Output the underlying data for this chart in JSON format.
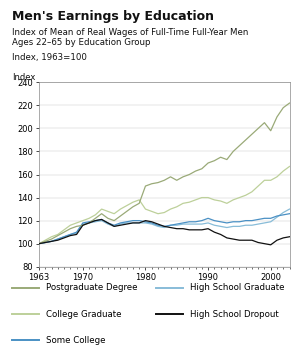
{
  "title": "Men's Earnings by Education",
  "subtitle1": "Index of Mean of Real Wages of Full-Time Full-Year Men",
  "subtitle2": "Ages 22–65 by Education Group",
  "ylabel_top": "Index, 1963=100",
  "ylabel_axis": "Index",
  "xlim": [
    1963,
    2003
  ],
  "ylim": [
    80,
    240
  ],
  "yticks": [
    80,
    100,
    120,
    140,
    160,
    180,
    200,
    220,
    240
  ],
  "xticks": [
    1963,
    1970,
    1980,
    1990,
    2000
  ],
  "years": [
    1963,
    1964,
    1965,
    1966,
    1967,
    1968,
    1969,
    1970,
    1971,
    1972,
    1973,
    1974,
    1975,
    1976,
    1977,
    1978,
    1979,
    1980,
    1981,
    1982,
    1983,
    1984,
    1985,
    1986,
    1987,
    1988,
    1989,
    1990,
    1991,
    1992,
    1993,
    1994,
    1995,
    1996,
    1997,
    1998,
    1999,
    2000,
    2001,
    2002,
    2003
  ],
  "postgrad": [
    100,
    102,
    104,
    107,
    110,
    113,
    115,
    116,
    118,
    122,
    126,
    122,
    120,
    124,
    128,
    132,
    135,
    150,
    152,
    153,
    155,
    158,
    155,
    158,
    160,
    163,
    165,
    170,
    172,
    175,
    173,
    180,
    185,
    190,
    195,
    200,
    205,
    198,
    210,
    218,
    222
  ],
  "college": [
    100,
    103,
    106,
    108,
    112,
    116,
    118,
    120,
    122,
    125,
    130,
    128,
    126,
    130,
    133,
    136,
    138,
    130,
    128,
    126,
    127,
    130,
    132,
    135,
    136,
    138,
    140,
    140,
    138,
    137,
    135,
    138,
    140,
    142,
    145,
    150,
    155,
    155,
    158,
    163,
    167
  ],
  "some_college": [
    100,
    101,
    102,
    104,
    106,
    108,
    110,
    118,
    119,
    120,
    121,
    118,
    116,
    118,
    119,
    120,
    120,
    119,
    118,
    116,
    115,
    116,
    117,
    118,
    119,
    119,
    120,
    122,
    120,
    119,
    118,
    119,
    119,
    120,
    120,
    121,
    122,
    122,
    124,
    125,
    126
  ],
  "hs_graduate": [
    100,
    101,
    102,
    104,
    106,
    108,
    109,
    117,
    118,
    119,
    120,
    117,
    115,
    117,
    118,
    118,
    118,
    118,
    117,
    115,
    114,
    116,
    116,
    117,
    117,
    117,
    117,
    118,
    116,
    115,
    114,
    115,
    115,
    116,
    116,
    117,
    118,
    119,
    123,
    127,
    130
  ],
  "hs_dropout": [
    100,
    101,
    102,
    103,
    105,
    107,
    108,
    116,
    118,
    120,
    121,
    118,
    115,
    116,
    117,
    118,
    118,
    120,
    119,
    117,
    115,
    114,
    113,
    113,
    112,
    112,
    112,
    113,
    110,
    108,
    105,
    104,
    103,
    103,
    103,
    101,
    100,
    99,
    103,
    105,
    106
  ],
  "colors": {
    "postgrad": "#9aaa78",
    "college": "#bdd09a",
    "some_college": "#4a90c4",
    "hs_graduate": "#88bcd8",
    "hs_dropout": "#111111"
  },
  "legend": [
    {
      "label": "Postgraduate Degree",
      "color": "#9aaa78",
      "side": "left"
    },
    {
      "label": "College Graduate",
      "color": "#bdd09a",
      "side": "left"
    },
    {
      "label": "Some College",
      "color": "#4a90c4",
      "side": "left"
    },
    {
      "label": "High School Graduate",
      "color": "#88bcd8",
      "side": "right"
    },
    {
      "label": "High School Dropout",
      "color": "#111111",
      "side": "right"
    }
  ]
}
